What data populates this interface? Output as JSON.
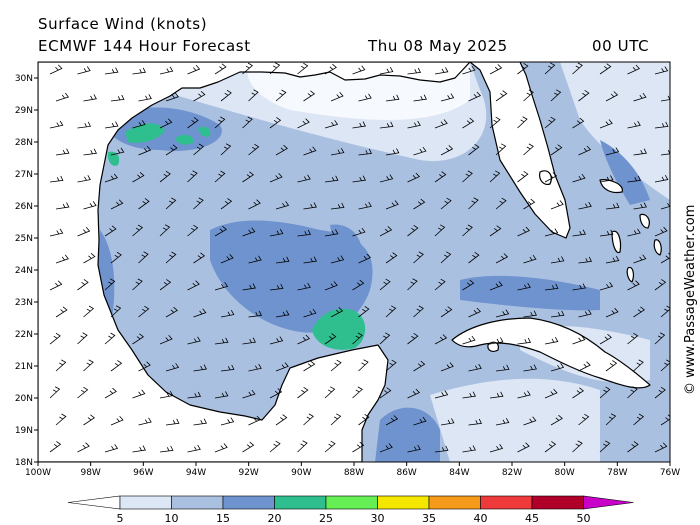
{
  "header": {
    "title": "Surface Wind (knots)",
    "model": "ECMWF 144 Hour Forecast",
    "date": "Thu 08 May 2025",
    "time": "00 UTC"
  },
  "credit": "© www.PassageWeather.com",
  "map": {
    "lon_range": [
      -100,
      -76
    ],
    "lat_range": [
      18,
      30.5
    ],
    "lon_ticks": [
      "100W",
      "98W",
      "96W",
      "94W",
      "92W",
      "90W",
      "88W",
      "86W",
      "84W",
      "82W",
      "80W",
      "78W",
      "76W"
    ],
    "lat_ticks": [
      "30N",
      "29N",
      "28N",
      "27N",
      "26N",
      "25N",
      "24N",
      "23N",
      "22N",
      "21N",
      "20N",
      "19N",
      "18N"
    ],
    "land_color": "#ffffff",
    "coast_color": "#000000"
  },
  "colorbar": {
    "labels": [
      "5",
      "10",
      "15",
      "20",
      "25",
      "30",
      "35",
      "40",
      "45",
      "50"
    ],
    "colors": [
      "#dce6f5",
      "#aac0e0",
      "#6f93cf",
      "#2fbf8f",
      "#66ee55",
      "#f5e600",
      "#f59a1a",
      "#ee3a3a",
      "#b0002a",
      "#c800c8"
    ]
  }
}
